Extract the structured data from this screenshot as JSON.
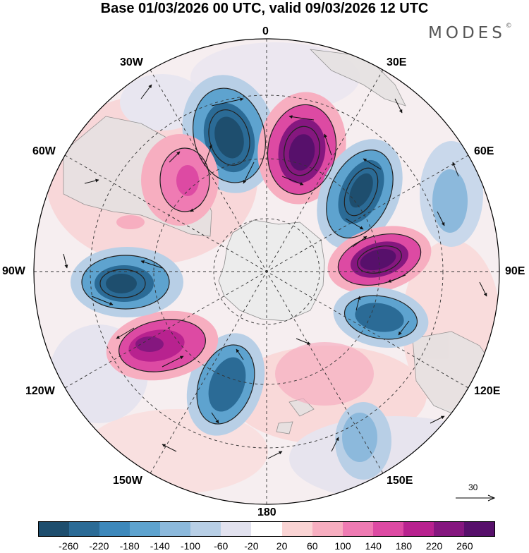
{
  "title": "Base 01/03/2026 00 UTC, valid 09/03/2026 12 UTC",
  "brand": {
    "name": "MODES",
    "mark": "©"
  },
  "map": {
    "projection": "south polar stereographic",
    "longitude_labels": {
      "top": "0",
      "top_right": "30E",
      "right_upper": "60E",
      "right": "90E",
      "right_lower": "120E",
      "bottom_right": "150E",
      "bottom": "180",
      "bottom_left": "150W",
      "left_lower": "120W",
      "left": "90W",
      "left_upper": "60W",
      "top_left": "30W"
    }
  },
  "reference_vector": {
    "value": "30"
  },
  "colorbar": {
    "colors": [
      "#1e4e6e",
      "#2b6b96",
      "#3d88bb",
      "#5ea3cf",
      "#8cb9dc",
      "#b8cfe6",
      "#e2e2ef",
      "#ffffff",
      "#fad4d4",
      "#f7aec0",
      "#ef7bb3",
      "#dd4aa3",
      "#b8228f",
      "#85177f",
      "#57106b"
    ],
    "tick_labels": [
      "-260",
      "-220",
      "-180",
      "-140",
      "-100",
      "-60",
      "-20",
      "20",
      "60",
      "100",
      "140",
      "180",
      "220",
      "260"
    ]
  }
}
